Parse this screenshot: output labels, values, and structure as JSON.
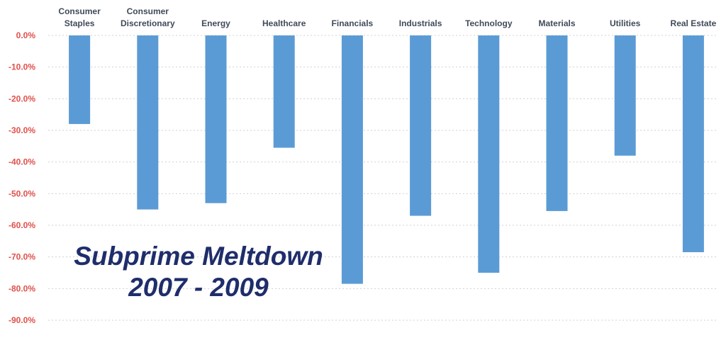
{
  "chart_data": {
    "type": "bar",
    "categories": [
      [
        "Consumer",
        "Staples"
      ],
      [
        "Consumer",
        "Discretionary"
      ],
      [
        "Energy"
      ],
      [
        "Healthcare"
      ],
      [
        "Financials"
      ],
      [
        "Industrials"
      ],
      [
        "Technology"
      ],
      [
        "Materials"
      ],
      [
        "Utilities"
      ],
      [
        "Real Estate"
      ]
    ],
    "values": [
      -28.0,
      -55.0,
      -53.0,
      -35.5,
      -78.5,
      -57.0,
      -75.0,
      -55.5,
      -38.0,
      -68.5
    ],
    "title_lines": [
      "Subprime Meltdown",
      "2007 - 2009"
    ],
    "yticks": [
      "0.0%",
      "-10.0%",
      "-20.0%",
      "-30.0%",
      "-40.0%",
      "-50.0%",
      "-60.0%",
      "-70.0%",
      "-80.0%",
      "-90.0%"
    ],
    "ylim": [
      -90,
      0
    ],
    "grid": true,
    "legend": "none",
    "colors": {
      "bar": "#5b9bd5",
      "tick_label": "#e0504b",
      "category_label": "#404a5a",
      "grid": "#d0d0d0",
      "title": "#1f2d6b"
    }
  }
}
